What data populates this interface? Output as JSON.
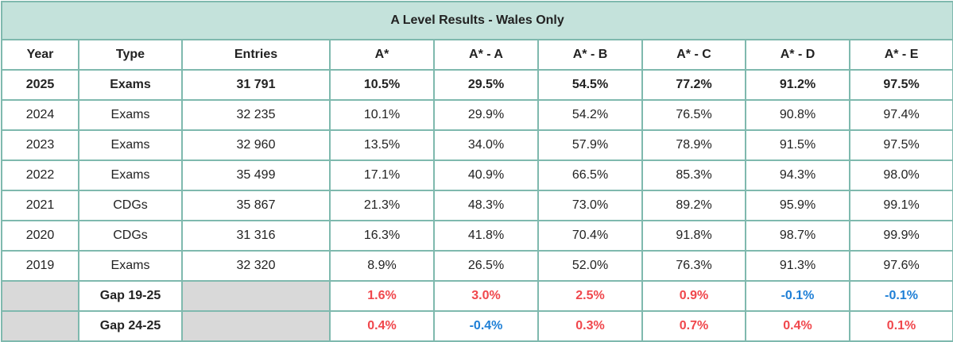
{
  "title": "A Level Results - Wales Only",
  "headers": [
    "Year",
    "Type",
    "Entries",
    "A*",
    "A* - A",
    "A* - B",
    "A* - C",
    "A* - D",
    "A* - E"
  ],
  "rows": [
    {
      "year": "2025",
      "type": "Exams",
      "entries": "31 791",
      "v": [
        "10.5%",
        "29.5%",
        "54.5%",
        "77.2%",
        "91.2%",
        "97.5%"
      ]
    },
    {
      "year": "2024",
      "type": "Exams",
      "entries": "32 235",
      "v": [
        "10.1%",
        "29.9%",
        "54.2%",
        "76.5%",
        "90.8%",
        "97.4%"
      ]
    },
    {
      "year": "2023",
      "type": "Exams",
      "entries": "32 960",
      "v": [
        "13.5%",
        "34.0%",
        "57.9%",
        "78.9%",
        "91.5%",
        "97.5%"
      ]
    },
    {
      "year": "2022",
      "type": "Exams",
      "entries": "35 499",
      "v": [
        "17.1%",
        "40.9%",
        "66.5%",
        "85.3%",
        "94.3%",
        "98.0%"
      ]
    },
    {
      "year": "2021",
      "type": "CDGs",
      "entries": "35 867",
      "v": [
        "21.3%",
        "48.3%",
        "73.0%",
        "89.2%",
        "95.9%",
        "99.1%"
      ]
    },
    {
      "year": "2020",
      "type": "CDGs",
      "entries": "31 316",
      "v": [
        "16.3%",
        "41.8%",
        "70.4%",
        "91.8%",
        "98.7%",
        "99.9%"
      ]
    },
    {
      "year": "2019",
      "type": "Exams",
      "entries": "32 320",
      "v": [
        "8.9%",
        "26.5%",
        "52.0%",
        "76.3%",
        "91.3%",
        "97.6%"
      ]
    }
  ],
  "gaps": [
    {
      "label": "Gap 19-25",
      "v": [
        "1.6%",
        "3.0%",
        "2.5%",
        "0.9%",
        "-0.1%",
        "-0.1%"
      ]
    },
    {
      "label": "Gap 24-25",
      "v": [
        "0.4%",
        "-0.4%",
        "0.3%",
        "0.7%",
        "0.4%",
        "0.1%"
      ]
    }
  ],
  "colors": {
    "header_bg": "#c4e2db",
    "border": "#7fb9ae",
    "grey_cell": "#d9d9d9",
    "positive": "#f0474c",
    "negative": "#1e7fd6"
  }
}
